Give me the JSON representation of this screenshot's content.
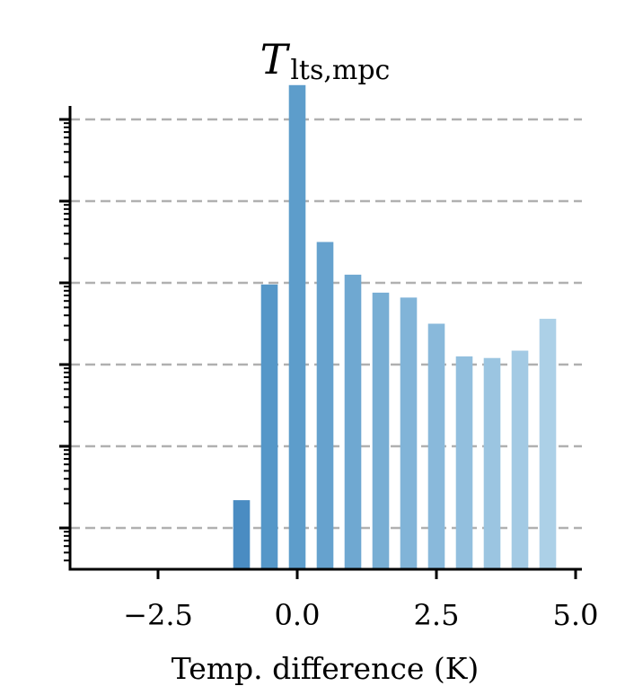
{
  "chart_data": {
    "type": "bar",
    "title": {
      "main": "T",
      "subscript": "lts,mpc"
    },
    "xlabel": "Temp. difference (K)",
    "ylabel": "",
    "y_scale": "log",
    "y_decades": 6,
    "x_ticks": [
      -2.5,
      0.0,
      2.5,
      5.0
    ],
    "x_tick_labels": [
      "−2.5",
      "0.0",
      "2.5",
      "5.0"
    ],
    "xlim": [
      -4.0,
      5.0
    ],
    "grid": "horizontal dashed at each decade",
    "bar_width": 0.3,
    "x": [
      -1.0,
      -0.5,
      0.0,
      0.5,
      1.0,
      1.5,
      2.0,
      2.5,
      3.0,
      3.5,
      4.0,
      4.5
    ],
    "log10_values": [
      0.34,
      2.98,
      5.42,
      3.5,
      3.1,
      2.88,
      2.82,
      2.5,
      2.1,
      2.08,
      2.17,
      2.56
    ],
    "bar_colors": [
      "#4a8cc2",
      "#5597c8",
      "#5d9dcb",
      "#66a2ce",
      "#6fa8d1",
      "#78aed4",
      "#81b4d8",
      "#89b9db",
      "#92bfde",
      "#9bc5e1",
      "#a3cae4",
      "#acd0e7"
    ]
  }
}
